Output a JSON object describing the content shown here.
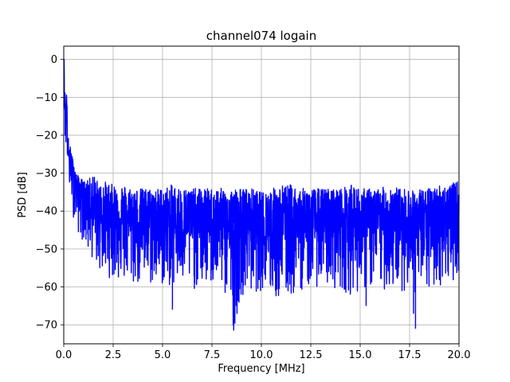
{
  "chart_data": {
    "type": "line",
    "title": "channel074 logain",
    "xlabel": "Frequency [MHz]",
    "ylabel": "PSD [dB]",
    "xlim": [
      0,
      20
    ],
    "ylim": [
      -75,
      3.5
    ],
    "grid": true,
    "x_ticks": [
      0,
      2.5,
      5,
      7.5,
      10,
      12.5,
      15,
      17.5,
      20
    ],
    "x_tick_labels": [
      "0.0",
      "2.5",
      "5.0",
      "7.5",
      "10.0",
      "12.5",
      "15.0",
      "17.5",
      "20.0"
    ],
    "y_ticks": [
      0,
      -10,
      -20,
      -30,
      -40,
      -50,
      -60,
      -70
    ],
    "y_tick_labels": [
      "0",
      "−10",
      "−20",
      "−30",
      "−40",
      "−50",
      "−60",
      "−70"
    ],
    "series": [
      {
        "color": "#0000ff",
        "x": [
          0.0,
          0.05,
          0.1,
          0.15,
          0.2,
          0.3,
          0.4,
          0.5,
          0.6,
          0.8,
          1.0,
          1.2,
          1.5,
          1.8,
          2.0,
          2.5,
          3.0,
          3.5,
          4.0,
          4.5,
          5.0,
          5.5,
          6.0,
          6.5,
          7.0,
          7.5,
          8.0,
          8.6,
          9.0,
          9.5,
          10.0,
          10.5,
          11.0,
          11.5,
          12.0,
          12.5,
          13.0,
          13.5,
          14.0,
          14.5,
          15.0,
          15.5,
          16.0,
          16.5,
          17.0,
          17.5,
          17.8,
          18.0,
          18.5,
          19.0,
          19.5,
          20.0
        ],
        "y": [
          0,
          -12,
          -17,
          -10,
          -24,
          -27,
          -28,
          -30,
          -32,
          -35,
          -36,
          -38,
          -40,
          -41,
          -42,
          -42,
          -43,
          -43,
          -43,
          -44,
          -44,
          -44,
          -44,
          -44,
          -44,
          -44,
          -44,
          -45,
          -44,
          -45,
          -45,
          -46,
          -46,
          -45,
          -44,
          -44,
          -44,
          -44,
          -44,
          -44,
          -44,
          -44,
          -44,
          -44,
          -44,
          -44,
          -45,
          -44,
          -44,
          -43,
          -43,
          -42
        ],
        "envelope_upper": [
          0,
          -7,
          -10,
          -8,
          -20,
          -22,
          -25,
          -27,
          -30,
          -31,
          -32,
          -32,
          -30,
          -33,
          -32,
          -33,
          -33,
          -34,
          -34,
          -34,
          -34,
          -33,
          -34,
          -34,
          -34,
          -34,
          -34,
          -34,
          -34,
          -34,
          -35,
          -34,
          -33,
          -33,
          -34,
          -34,
          -34,
          -34,
          -34,
          -33,
          -34,
          -34,
          -34,
          -33,
          -34,
          -34,
          -35,
          -34,
          -34,
          -33,
          -33,
          -32
        ],
        "envelope_lower": [
          0,
          -20,
          -25,
          -18,
          -32,
          -35,
          -38,
          -42,
          -44,
          -47,
          -48,
          -51,
          -53,
          -56,
          -57,
          -58,
          -59,
          -60,
          -60,
          -60,
          -60,
          -60,
          -60,
          -61,
          -60,
          -60,
          -60,
          -71,
          -62,
          -62,
          -61,
          -63,
          -64,
          -63,
          -61,
          -60,
          -60,
          -60,
          -61,
          -62,
          -61,
          -61,
          -61,
          -61,
          -61,
          -61,
          -71,
          -62,
          -62,
          -60,
          -59,
          -57
        ],
        "notable_dips": [
          {
            "x": 8.6,
            "y": -71.5
          },
          {
            "x": 17.8,
            "y": -71
          },
          {
            "x": 15.3,
            "y": -65
          },
          {
            "x": 5.5,
            "y": -66
          }
        ]
      }
    ]
  }
}
